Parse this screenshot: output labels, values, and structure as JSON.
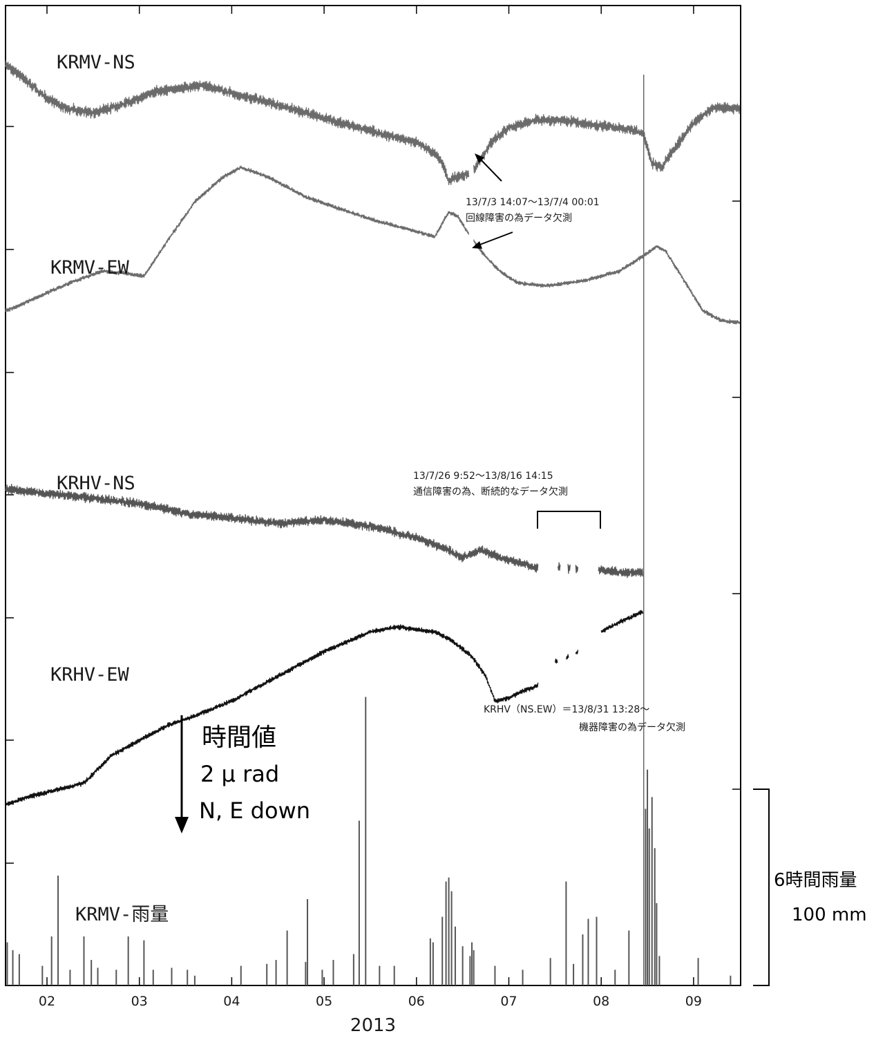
{
  "chart_data": {
    "type": "line",
    "x_unit": "month",
    "x_ticks": [
      "02",
      "03",
      "04",
      "05",
      "06",
      "07",
      "08",
      "09"
    ],
    "x_tick_values": [
      2,
      3,
      4,
      5,
      6,
      7,
      8,
      9
    ],
    "xlim": [
      1.55,
      9.5
    ],
    "year_label": "2013",
    "scale_bar": {
      "title": "時間値",
      "amount": "2 μ rad",
      "direction": "N, E down"
    },
    "rain_scale": {
      "title": "6時間雨量",
      "amount": "100 mm",
      "value_mm": 100
    },
    "event_line_month": 8.46,
    "series": [
      {
        "name": "KRMV-NS",
        "color": "#6b6b6b",
        "noise": 14,
        "points": [
          [
            1.55,
            0.0
          ],
          [
            1.75,
            -0.15
          ],
          [
            2.0,
            -0.35
          ],
          [
            2.2,
            -0.45
          ],
          [
            2.5,
            -0.5
          ],
          [
            2.8,
            -0.42
          ],
          [
            3.2,
            -0.28
          ],
          [
            3.7,
            -0.22
          ],
          [
            4.0,
            -0.3
          ],
          [
            4.5,
            -0.42
          ],
          [
            5.0,
            -0.55
          ],
          [
            5.5,
            -0.68
          ],
          [
            6.0,
            -0.8
          ],
          [
            6.2,
            -0.9
          ],
          [
            6.3,
            -1.05
          ],
          [
            6.35,
            -1.2
          ],
          [
            6.4,
            -1.15
          ],
          [
            6.55,
            -1.12
          ],
          [
            6.65,
            -1.05
          ],
          [
            6.8,
            -0.8
          ],
          [
            7.0,
            -0.65
          ],
          [
            7.3,
            -0.57
          ],
          [
            7.6,
            -0.58
          ],
          [
            7.9,
            -0.62
          ],
          [
            8.2,
            -0.65
          ],
          [
            8.45,
            -0.7
          ],
          [
            8.55,
            -1.0
          ],
          [
            8.65,
            -1.05
          ],
          [
            8.8,
            -0.85
          ],
          [
            9.0,
            -0.6
          ],
          [
            9.2,
            -0.45
          ],
          [
            9.5,
            -0.45
          ]
        ],
        "gaps": [
          [
            6.57,
            6.62
          ]
        ]
      },
      {
        "name": "KRMV-EW",
        "color": "#6b6b6b",
        "noise": 5,
        "points": [
          [
            1.55,
            -2.5
          ],
          [
            1.7,
            -2.45
          ],
          [
            2.0,
            -2.32
          ],
          [
            2.3,
            -2.2
          ],
          [
            2.6,
            -2.1
          ],
          [
            2.8,
            -2.12
          ],
          [
            3.05,
            -2.15
          ],
          [
            3.3,
            -1.8
          ],
          [
            3.6,
            -1.4
          ],
          [
            3.9,
            -1.15
          ],
          [
            4.1,
            -1.05
          ],
          [
            4.4,
            -1.15
          ],
          [
            4.8,
            -1.35
          ],
          [
            5.2,
            -1.48
          ],
          [
            5.6,
            -1.6
          ],
          [
            6.0,
            -1.7
          ],
          [
            6.2,
            -1.75
          ],
          [
            6.35,
            -1.5
          ],
          [
            6.45,
            -1.55
          ],
          [
            6.55,
            -1.7
          ],
          [
            6.7,
            -1.9
          ],
          [
            6.9,
            -2.1
          ],
          [
            7.1,
            -2.22
          ],
          [
            7.4,
            -2.25
          ],
          [
            7.8,
            -2.2
          ],
          [
            8.2,
            -2.1
          ],
          [
            8.45,
            -1.95
          ],
          [
            8.6,
            -1.85
          ],
          [
            8.7,
            -1.9
          ],
          [
            8.9,
            -2.2
          ],
          [
            9.1,
            -2.5
          ],
          [
            9.3,
            -2.6
          ],
          [
            9.5,
            -2.62
          ]
        ],
        "gaps": [
          [
            6.57,
            6.62
          ]
        ]
      },
      {
        "name": "KRHV-NS",
        "color": "#555555",
        "noise": 12,
        "points": [
          [
            1.55,
            -4.3
          ],
          [
            2.0,
            -4.35
          ],
          [
            2.5,
            -4.4
          ],
          [
            3.0,
            -4.45
          ],
          [
            3.5,
            -4.55
          ],
          [
            4.0,
            -4.6
          ],
          [
            4.5,
            -4.65
          ],
          [
            5.0,
            -4.62
          ],
          [
            5.5,
            -4.68
          ],
          [
            6.0,
            -4.8
          ],
          [
            6.3,
            -4.9
          ],
          [
            6.5,
            -5.0
          ],
          [
            6.7,
            -4.92
          ],
          [
            6.9,
            -5.0
          ],
          [
            7.1,
            -5.05
          ],
          [
            7.3,
            -5.1
          ],
          [
            7.5,
            -5.1
          ],
          [
            7.8,
            -5.12
          ],
          [
            8.0,
            -5.12
          ],
          [
            8.2,
            -5.15
          ],
          [
            8.45,
            -5.15
          ]
        ],
        "gaps": [
          [
            7.32,
            7.53
          ],
          [
            7.56,
            7.64
          ],
          [
            7.67,
            7.72
          ],
          [
            7.75,
            7.97
          ]
        ]
      },
      {
        "name": "KRHV-EW",
        "color": "#111111",
        "noise": 6,
        "points": [
          [
            1.55,
            -7.5
          ],
          [
            1.8,
            -7.42
          ],
          [
            2.1,
            -7.35
          ],
          [
            2.4,
            -7.28
          ],
          [
            2.7,
            -7.0
          ],
          [
            3.0,
            -6.85
          ],
          [
            3.3,
            -6.7
          ],
          [
            3.6,
            -6.6
          ],
          [
            4.0,
            -6.45
          ],
          [
            4.5,
            -6.2
          ],
          [
            5.0,
            -5.95
          ],
          [
            5.5,
            -5.75
          ],
          [
            5.8,
            -5.7
          ],
          [
            6.2,
            -5.75
          ],
          [
            6.4,
            -5.85
          ],
          [
            6.6,
            -6.0
          ],
          [
            6.75,
            -6.2
          ],
          [
            6.85,
            -6.45
          ],
          [
            7.0,
            -6.42
          ],
          [
            7.15,
            -6.35
          ],
          [
            7.3,
            -6.3
          ],
          [
            7.5,
            -6.05
          ],
          [
            7.65,
            -6.0
          ],
          [
            7.75,
            -5.95
          ],
          [
            8.0,
            -5.75
          ],
          [
            8.2,
            -5.65
          ],
          [
            8.45,
            -5.55
          ]
        ],
        "gaps": [
          [
            7.32,
            7.5
          ],
          [
            7.53,
            7.62
          ],
          [
            7.65,
            7.72
          ],
          [
            7.75,
            8.0
          ]
        ]
      }
    ],
    "rain": {
      "name": "KRMV-雨量",
      "unit": "mm",
      "bars": [
        [
          1.57,
          22
        ],
        [
          1.63,
          18
        ],
        [
          1.7,
          16
        ],
        [
          1.95,
          10
        ],
        [
          2.05,
          25
        ],
        [
          2.12,
          56
        ],
        [
          2.25,
          8
        ],
        [
          2.4,
          25
        ],
        [
          2.48,
          13
        ],
        [
          2.55,
          9
        ],
        [
          2.75,
          8
        ],
        [
          2.88,
          25
        ],
        [
          3.05,
          23
        ],
        [
          3.15,
          8
        ],
        [
          3.35,
          9
        ],
        [
          3.52,
          8
        ],
        [
          3.6,
          5
        ],
        [
          4.1,
          10
        ],
        [
          4.38,
          11
        ],
        [
          4.48,
          13
        ],
        [
          4.6,
          28
        ],
        [
          4.8,
          12
        ],
        [
          4.82,
          44
        ],
        [
          4.98,
          8
        ],
        [
          5.1,
          13
        ],
        [
          5.32,
          16
        ],
        [
          5.38,
          84
        ],
        [
          5.45,
          147
        ],
        [
          5.6,
          10
        ],
        [
          5.76,
          10
        ],
        [
          6.15,
          24
        ],
        [
          6.18,
          22
        ],
        [
          6.28,
          35
        ],
        [
          6.32,
          53
        ],
        [
          6.35,
          55
        ],
        [
          6.38,
          48
        ],
        [
          6.42,
          30
        ],
        [
          6.5,
          20
        ],
        [
          6.58,
          15
        ],
        [
          6.6,
          22
        ],
        [
          6.62,
          18
        ],
        [
          6.85,
          10
        ],
        [
          7.15,
          8
        ],
        [
          7.45,
          14
        ],
        [
          7.62,
          53
        ],
        [
          7.7,
          11
        ],
        [
          7.8,
          26
        ],
        [
          7.86,
          34
        ],
        [
          7.95,
          35
        ],
        [
          8.15,
          8
        ],
        [
          8.3,
          28
        ],
        [
          8.48,
          90
        ],
        [
          8.5,
          110
        ],
        [
          8.52,
          80
        ],
        [
          8.55,
          96
        ],
        [
          8.58,
          70
        ],
        [
          8.6,
          42
        ],
        [
          8.63,
          15
        ],
        [
          9.05,
          14
        ],
        [
          9.4,
          5
        ]
      ]
    }
  },
  "labels": {
    "krmv_ns": "KRMV-NS",
    "krmv_ew": "KRMV-EW",
    "krhv_ns": "KRHV-NS",
    "krhv_ew": "KRHV-EW",
    "krmv_rain": "KRMV-雨量"
  },
  "annotations": {
    "krmv_gap_line1": "13/7/3 14:07～13/7/4 00:01",
    "krmv_gap_line2": "回線障害の為データ欠測",
    "krhv_gap_line1": "13/7/26 9:52～13/8/16 14:15",
    "krhv_gap_line2": "通信障害の為、断続的なデータ欠測",
    "krhv_stop_line1": "KRHV（NS.EW）＝13/8/31 13:28～",
    "krhv_stop_line2": "機器障害の為データ欠測"
  }
}
